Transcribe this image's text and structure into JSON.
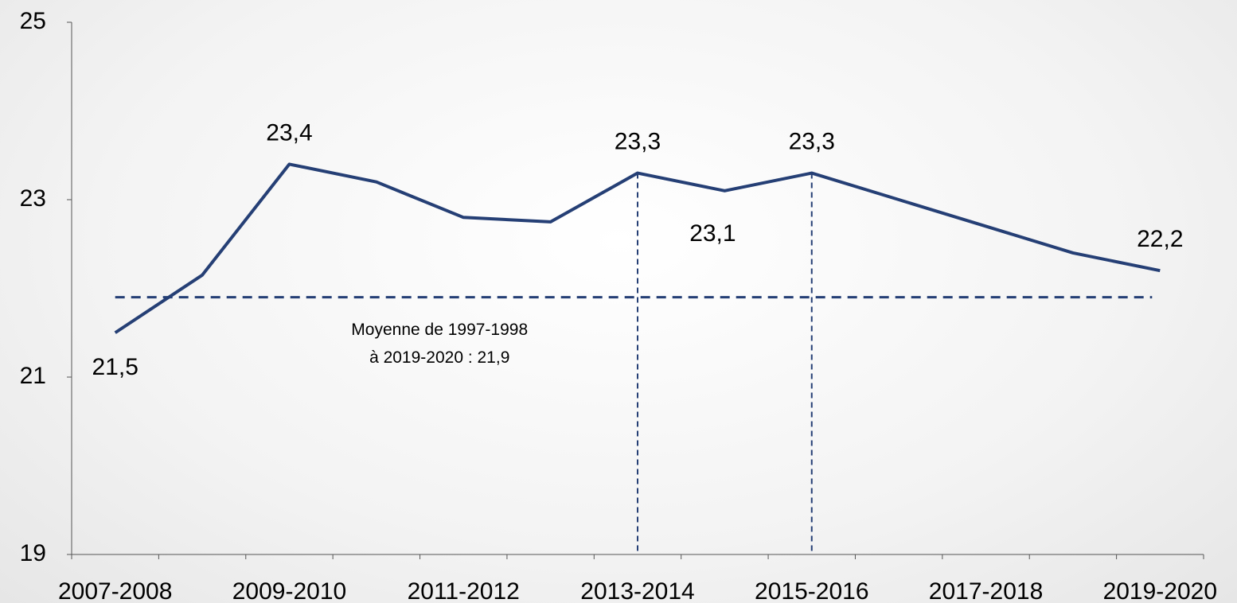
{
  "chart_data": {
    "type": "line",
    "categories": [
      "2007-2008",
      null,
      "2009-2010",
      null,
      "2011-2012",
      null,
      "2013-2014",
      null,
      "2015-2016",
      null,
      "2017-2018",
      null,
      "2019-2020"
    ],
    "series": [
      {
        "color": "#253f75",
        "values": [
          21.5,
          22.15,
          23.4,
          23.2,
          22.8,
          22.75,
          23.3,
          23.1,
          23.3,
          23.0,
          22.7,
          22.4,
          22.2
        ],
        "value_labels": [
          "21,5",
          null,
          "23,4",
          null,
          null,
          null,
          "23,3",
          "23,1",
          "23,3",
          null,
          null,
          null,
          "22,2"
        ],
        "value_label_position": [
          "below",
          null,
          "above",
          null,
          null,
          null,
          "above",
          "below",
          "above",
          null,
          null,
          null,
          "above"
        ]
      }
    ],
    "ylim": [
      19,
      25
    ],
    "yticks": [
      19,
      21,
      23,
      25
    ],
    "grid": false,
    "drop_lines_at": [
      6,
      8
    ],
    "mean_line": {
      "value": 21.9,
      "color": "#253f75",
      "label": [
        "Moyenne de 1997-1998",
        "à 2019-2020 : 21,9"
      ]
    }
  }
}
